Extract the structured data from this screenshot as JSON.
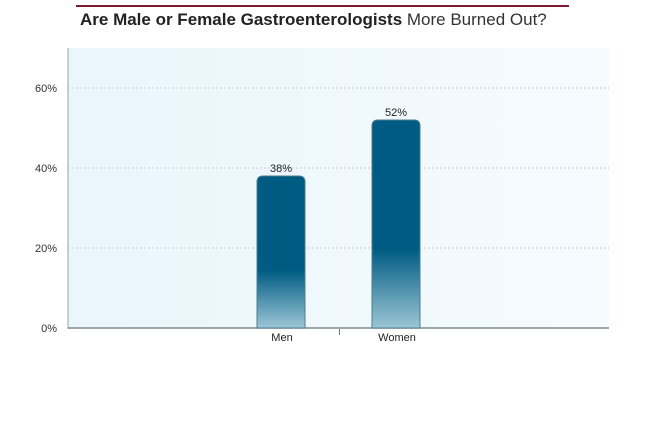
{
  "title": {
    "bold": "Are Male or Female Gastroenterologists",
    "normal": "More Burned Out?"
  },
  "colors": {
    "accent_rule": "#7a1a33",
    "bar_top": "#005b82",
    "bar_bottom": "#9cc6d6",
    "plot_bg": "#eef8fc"
  },
  "chart_data": {
    "type": "bar",
    "categories": [
      "Men",
      "Women"
    ],
    "values": [
      38,
      52
    ],
    "value_labels": [
      "38%",
      "52%"
    ],
    "title": "Are Male or Female Gastroenterologists More Burned Out?",
    "xlabel": "",
    "ylabel": "",
    "ylim": [
      0,
      70
    ],
    "yticks": [
      0,
      20,
      40,
      60
    ],
    "ytick_labels": [
      "0%",
      "20%",
      "40%",
      "60%"
    ],
    "grid": true,
    "legend": "none"
  }
}
